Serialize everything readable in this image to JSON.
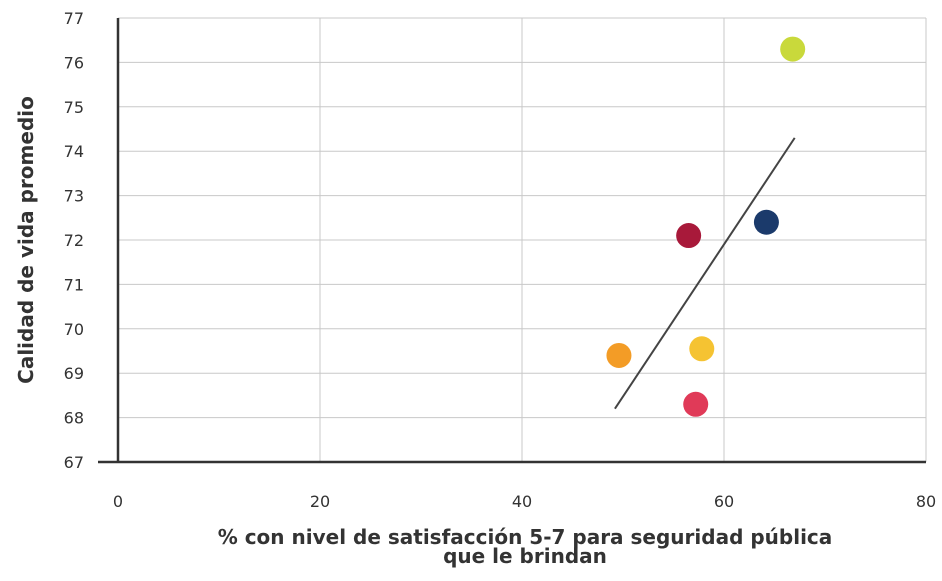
{
  "chart_data": {
    "type": "scatter",
    "title": "",
    "xlabel_lines": [
      "% con nivel de satisfacción 5-7 para seguridad pública",
      "que le brindan"
    ],
    "ylabel": "Calidad de vida promedio",
    "xlim": [
      0,
      80
    ],
    "ylim": [
      67,
      77
    ],
    "x_ticks": [
      "0",
      "20",
      "40",
      "60",
      "80"
    ],
    "y_ticks": [
      "67",
      "68",
      "69",
      "70",
      "71",
      "72",
      "73",
      "74",
      "75",
      "76",
      "77"
    ],
    "grid": true,
    "legend": "none",
    "points": [
      {
        "x": 66.8,
        "y": 76.3,
        "color": "#c9d93b"
      },
      {
        "x": 64.2,
        "y": 72.4,
        "color": "#1b3a6b"
      },
      {
        "x": 56.5,
        "y": 72.1,
        "color": "#a8193a"
      },
      {
        "x": 57.8,
        "y": 69.55,
        "color": "#f5c332"
      },
      {
        "x": 49.6,
        "y": 69.4,
        "color": "#f39c26"
      },
      {
        "x": 57.2,
        "y": 68.3,
        "color": "#e03a58"
      }
    ],
    "trendline": {
      "x": [
        49.2,
        67.0
      ],
      "y": [
        68.2,
        74.3
      ],
      "color": "#444444"
    }
  }
}
